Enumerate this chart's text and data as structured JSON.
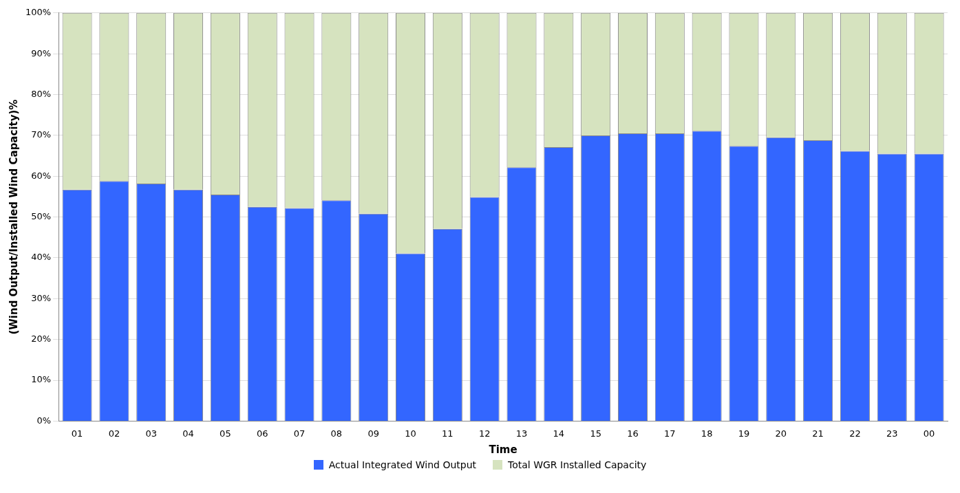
{
  "chart_data": {
    "type": "bar",
    "stacked": true,
    "xlabel": "Time",
    "ylabel": "(Wind Output/Installed Wind Capacity)%",
    "categories": [
      "01",
      "02",
      "03",
      "04",
      "05",
      "06",
      "07",
      "08",
      "09",
      "10",
      "11",
      "12",
      "13",
      "14",
      "15",
      "16",
      "17",
      "18",
      "19",
      "20",
      "21",
      "22",
      "23",
      "00"
    ],
    "series": [
      {
        "name": "Actual Integrated Wind Output",
        "color": "#3366ff",
        "values": [
          56.7,
          58.8,
          58.2,
          56.7,
          55.5,
          52.5,
          52.2,
          54.1,
          50.8,
          41.1,
          47.1,
          54.9,
          62.2,
          67.1,
          70.0,
          70.5,
          70.5,
          71.1,
          67.4,
          69.5,
          68.8,
          66.2,
          65.5,
          65.5
        ]
      },
      {
        "name": "Total WGR Installed Capacity",
        "color": "#d6e3bf",
        "values": [
          43.3,
          41.2,
          41.8,
          43.3,
          44.5,
          47.5,
          47.8,
          45.9,
          49.2,
          58.9,
          52.9,
          45.1,
          37.8,
          32.9,
          30.0,
          29.5,
          29.5,
          28.9,
          32.6,
          30.5,
          31.2,
          33.8,
          34.5,
          34.5
        ]
      }
    ],
    "ylim": [
      0,
      100
    ],
    "yticks": [
      {
        "value": 0,
        "label": "0%"
      },
      {
        "value": 10,
        "label": "10%"
      },
      {
        "value": 20,
        "label": "20%"
      },
      {
        "value": 30,
        "label": "30%"
      },
      {
        "value": 40,
        "label": "40%"
      },
      {
        "value": 50,
        "label": "50%"
      },
      {
        "value": 60,
        "label": "60%"
      },
      {
        "value": 70,
        "label": "70%"
      },
      {
        "value": 80,
        "label": "80%"
      },
      {
        "value": 90,
        "label": "90%"
      },
      {
        "value": 100,
        "label": "100%"
      }
    ],
    "grid": "y",
    "legend": "bottom"
  }
}
